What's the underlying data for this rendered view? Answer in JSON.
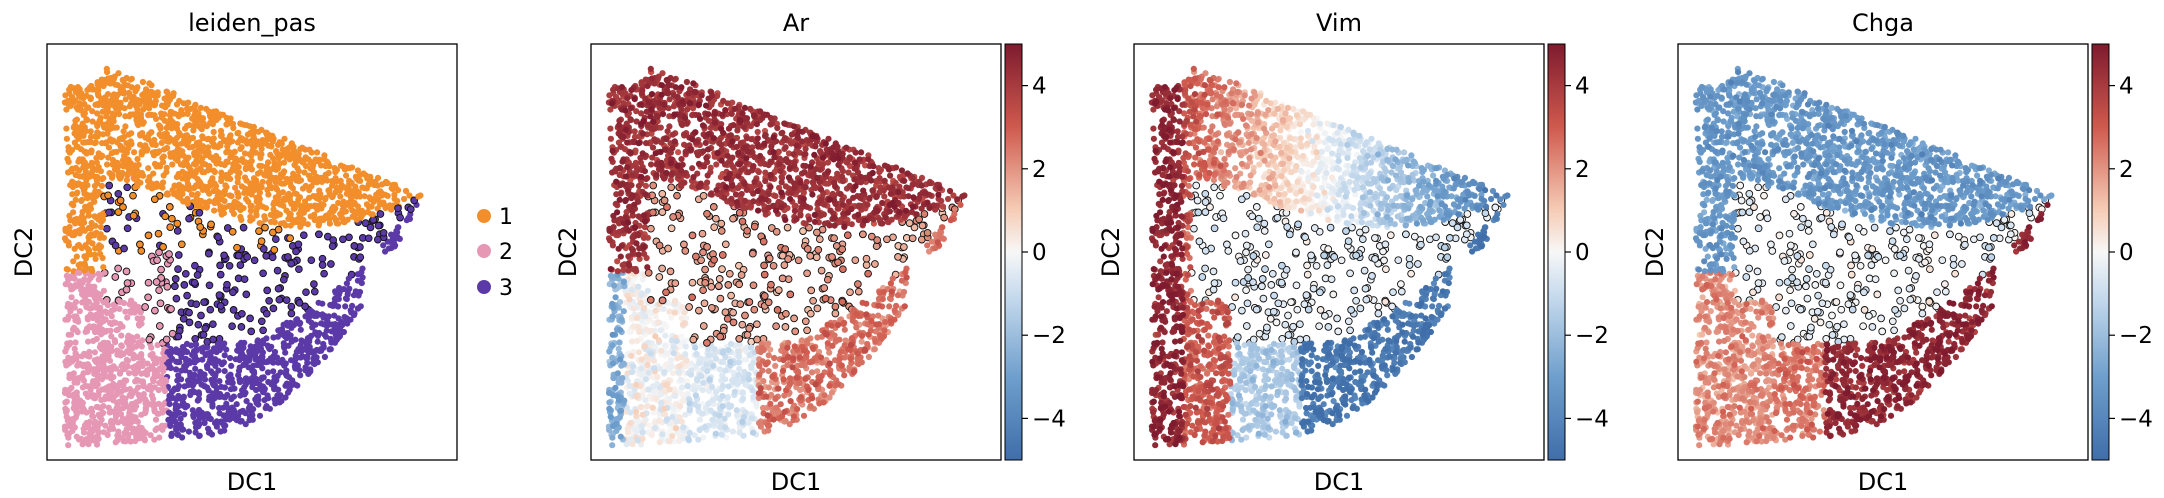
{
  "colors": {
    "cluster_1": "#f28e2b",
    "cluster_2": "#e597b4",
    "cluster_3": "#5b3aa8",
    "rdbu_low": "#3f6ea9",
    "rdbu_mid": "#f7f7f7",
    "rdbu_high": "#7e1b2e"
  },
  "chart_data": [
    {
      "type": "scatter",
      "title": "leiden_pas",
      "xlabel": "DC1",
      "ylabel": "DC2",
      "color_mode": "categorical",
      "legend": {
        "placement": "right",
        "entries": [
          {
            "label": "1",
            "color": "#f28e2b"
          },
          {
            "label": "2",
            "color": "#e597b4"
          },
          {
            "label": "3",
            "color": "#5b3aa8"
          }
        ]
      }
    },
    {
      "type": "scatter",
      "title": "Ar",
      "xlabel": "DC1",
      "ylabel": "DC2",
      "color_mode": "continuous",
      "colorbar": {
        "colormap": "RdBu_r",
        "vmin": -5,
        "vmax": 5,
        "ticks": [
          "4",
          "2",
          "0",
          "−2",
          "−4"
        ],
        "tick_values": [
          4,
          2,
          0,
          -2,
          -4
        ]
      }
    },
    {
      "type": "scatter",
      "title": "Vim",
      "xlabel": "DC1",
      "ylabel": "DC2",
      "color_mode": "continuous",
      "colorbar": {
        "colormap": "RdBu_r",
        "vmin": -5,
        "vmax": 5,
        "ticks": [
          "4",
          "2",
          "0",
          "−2",
          "−4"
        ],
        "tick_values": [
          4,
          2,
          0,
          -2,
          -4
        ]
      }
    },
    {
      "type": "scatter",
      "title": "Chga",
      "xlabel": "DC1",
      "ylabel": "DC2",
      "color_mode": "continuous",
      "colorbar": {
        "colormap": "RdBu_r",
        "vmin": -5,
        "vmax": 5,
        "ticks": [
          "4",
          "2",
          "0",
          "−2",
          "−4"
        ],
        "tick_values": [
          4,
          2,
          0,
          -2,
          -4
        ]
      }
    }
  ]
}
